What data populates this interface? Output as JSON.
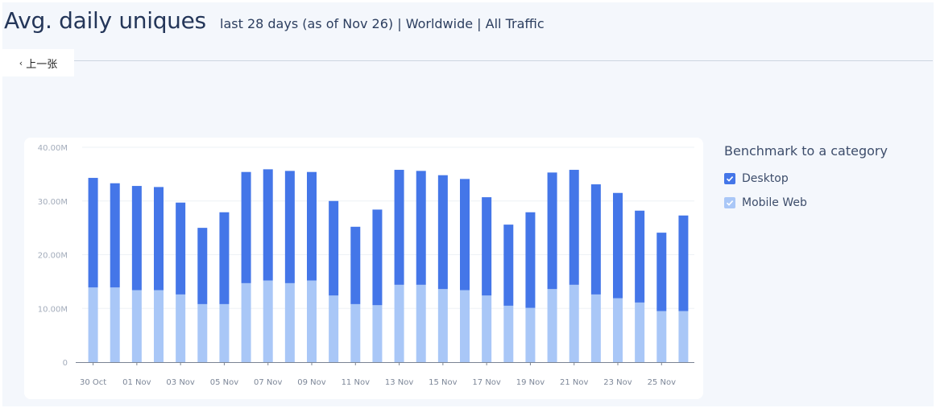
{
  "header": {
    "title": "Avg. daily uniques",
    "subtitle": "last 28 days (as of Nov 26) | Worldwide | All Traffic"
  },
  "nav": {
    "prev_label": "上一张",
    "prev_icon": "chevron-left-icon"
  },
  "legend": {
    "title": "Benchmark to a category",
    "items": [
      {
        "label": "Desktop",
        "checked": true,
        "color": "#4476e8"
      },
      {
        "label": "Mobile Web",
        "checked": true,
        "color": "#a9c7f7"
      }
    ]
  },
  "chart_data": {
    "type": "bar",
    "stacked": true,
    "categories": [
      "30 Oct",
      "31 Oct",
      "01 Nov",
      "02 Nov",
      "03 Nov",
      "04 Nov",
      "05 Nov",
      "06 Nov",
      "07 Nov",
      "08 Nov",
      "09 Nov",
      "10 Nov",
      "11 Nov",
      "12 Nov",
      "13 Nov",
      "14 Nov",
      "15 Nov",
      "16 Nov",
      "17 Nov",
      "18 Nov",
      "19 Nov",
      "20 Nov",
      "21 Nov",
      "22 Nov",
      "23 Nov",
      "24 Nov",
      "25 Nov",
      "26 Nov"
    ],
    "x_tick_labels": [
      "30 Oct",
      "01 Nov",
      "03 Nov",
      "05 Nov",
      "07 Nov",
      "09 Nov",
      "11 Nov",
      "13 Nov",
      "15 Nov",
      "17 Nov",
      "19 Nov",
      "21 Nov",
      "23 Nov",
      "25 Nov"
    ],
    "series": [
      {
        "name": "Mobile Web",
        "color": "#a9c7f7",
        "values": [
          13.9,
          13.9,
          13.4,
          13.4,
          12.6,
          10.8,
          10.8,
          14.7,
          15.2,
          14.7,
          15.2,
          12.4,
          10.8,
          10.6,
          14.4,
          14.4,
          13.6,
          13.4,
          12.4,
          10.5,
          10.1,
          13.6,
          14.4,
          12.6,
          11.9,
          11.1,
          9.5,
          9.5
        ]
      },
      {
        "name": "Desktop",
        "color": "#4476e8",
        "values": [
          20.4,
          19.4,
          19.4,
          19.2,
          17.1,
          14.2,
          17.1,
          20.7,
          20.7,
          20.9,
          20.2,
          17.6,
          14.4,
          17.8,
          21.4,
          21.2,
          21.2,
          20.7,
          18.3,
          15.1,
          17.8,
          21.7,
          21.4,
          20.5,
          19.6,
          17.1,
          14.6,
          17.8
        ]
      }
    ],
    "y_unit": "M",
    "y_ticks": [
      "0",
      "10.00M",
      "20.00M",
      "30.00M",
      "40.00M"
    ],
    "ylim": [
      0,
      40
    ],
    "grid": true,
    "legend_position": "right"
  }
}
